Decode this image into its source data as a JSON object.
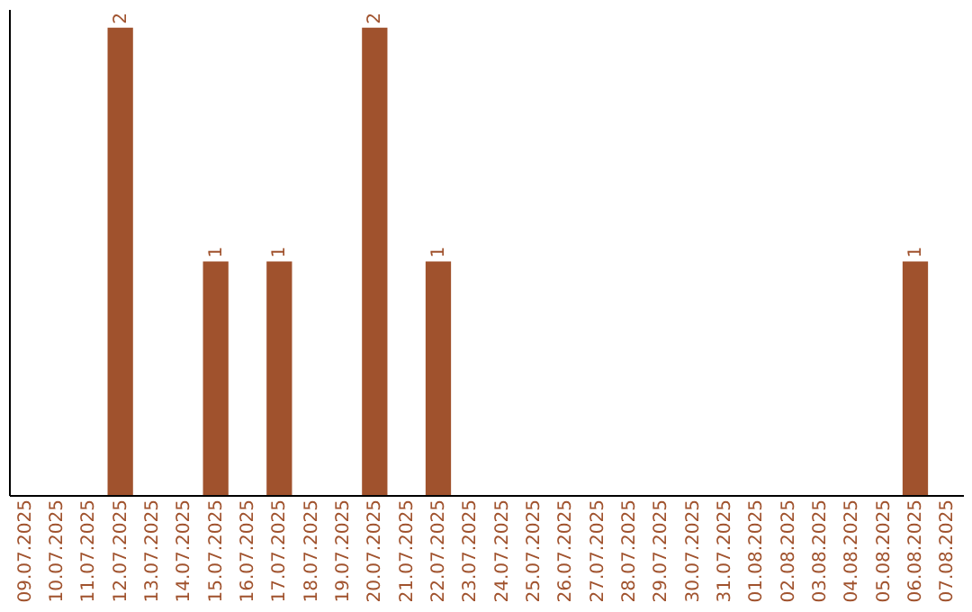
{
  "chart_data": {
    "type": "bar",
    "categories": [
      "09.07.2025",
      "10.07.2025",
      "11.07.2025",
      "12.07.2025",
      "13.07.2025",
      "14.07.2025",
      "15.07.2025",
      "16.07.2025",
      "17.07.2025",
      "18.07.2025",
      "19.07.2025",
      "20.07.2025",
      "21.07.2025",
      "22.07.2025",
      "23.07.2025",
      "24.07.2025",
      "25.07.2025",
      "26.07.2025",
      "27.07.2025",
      "28.07.2025",
      "29.07.2025",
      "30.07.2025",
      "31.07.2025",
      "01.08.2025",
      "02.08.2025",
      "03.08.2025",
      "04.08.2025",
      "05.08.2025",
      "06.08.2025",
      "07.08.2025"
    ],
    "values": [
      0,
      0,
      0,
      2,
      0,
      0,
      1,
      0,
      1,
      0,
      0,
      2,
      0,
      1,
      0,
      0,
      0,
      0,
      0,
      0,
      0,
      0,
      0,
      0,
      0,
      0,
      0,
      0,
      1,
      0
    ],
    "value_labels": [
      null,
      null,
      null,
      "2",
      null,
      null,
      "1",
      null,
      "1",
      null,
      null,
      "2",
      null,
      "1",
      null,
      null,
      null,
      null,
      null,
      null,
      null,
      null,
      null,
      null,
      null,
      null,
      null,
      null,
      "1",
      null
    ],
    "color": "#a0522d",
    "grid": false,
    "tick_labels": "x"
  }
}
